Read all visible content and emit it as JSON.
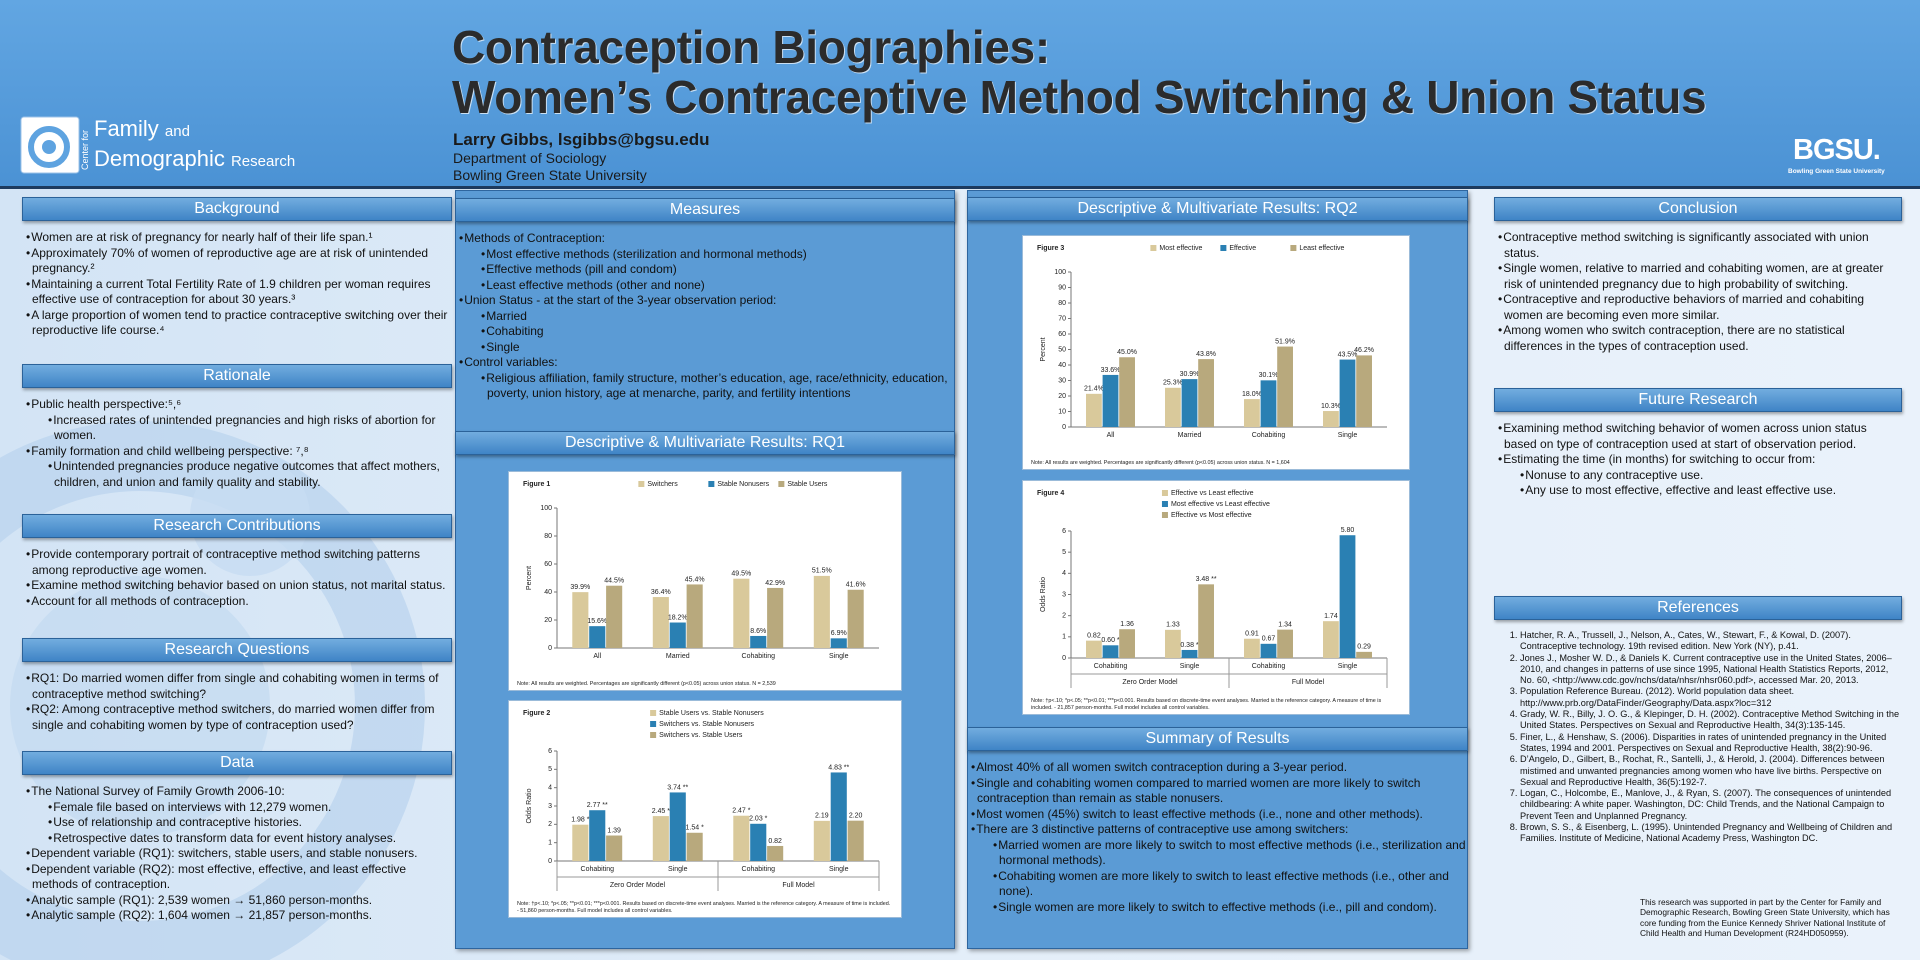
{
  "header": {
    "title_line1": "Contraception Biographies:",
    "title_line2": "Women’s Contraceptive Method Switching & Union Status",
    "author": "Larry Gibbs, lsgibbs@bgsu.edu",
    "department": "Department of Sociology",
    "university": "Bowling Green State University"
  },
  "logo": {
    "center_for": "Center for",
    "family": "Family",
    "and": "and",
    "demographic": "Demographic",
    "research": "Research"
  },
  "bgsu_logo": {
    "mark": "BGSU.",
    "name": "Bowling Green State University"
  },
  "sections": [
    {
      "heading": "Background",
      "bullets": [
        {
          "text": "Women are at risk of pregnancy for nearly half of their life span.¹"
        },
        {
          "text": "Approximately 70% of women of reproductive age are at risk of unintended pregnancy.²"
        },
        {
          "text": "Maintaining a current Total Fertility Rate of 1.9 children per woman requires effective use of contraception for about 30 years.³"
        },
        {
          "text": "A large proportion of women tend to practice contraceptive switching over their reproductive life course.⁴"
        }
      ]
    },
    {
      "heading": "Rationale",
      "bullets": [
        {
          "text": "Public health perspective:⁵,⁶",
          "sub": [
            "Increased rates of unintended pregnancies and high risks of abortion for women."
          ]
        },
        {
          "text": "Family formation and child wellbeing perspective: ⁷,⁸",
          "sub": [
            "Unintended pregnancies produce negative outcomes that affect mothers, children, and union and family quality and stability."
          ]
        }
      ]
    },
    {
      "heading": "Research Contributions",
      "bullets": [
        {
          "text": "Provide contemporary portrait of contraceptive method switching patterns among reproductive age women."
        },
        {
          "text": "Examine method switching behavior based on union status, not marital status."
        },
        {
          "text": "Account for all methods of contraception."
        }
      ]
    },
    {
      "heading": "Research Questions",
      "bullets": [
        {
          "text": "RQ1:  Do married women differ from single and cohabiting women in terms of contraceptive method switching?"
        },
        {
          "text": "RQ2:  Among contraceptive method switchers, do married women differ from single and cohabiting women by type of contraception used?"
        }
      ]
    },
    {
      "heading": "Data",
      "bullets": [
        {
          "text": "The National Survey of Family Growth 2006-10:",
          "sub": [
            "Female file based on interviews with 12,279 women.",
            "Use of relationship and contraceptive histories.",
            "Retrospective dates to transform data for event history analyses."
          ]
        },
        {
          "text": "Dependent variable (RQ1): switchers, stable users, and stable nonusers."
        },
        {
          "text": "Dependent variable (RQ2): most effective, effective, and least effective methods of contraception."
        },
        {
          "text": "Analytic sample (RQ1): 2,539 women → 51,860 person-months."
        },
        {
          "text": "Analytic sample (RQ2): 1,604 women → 21,857 person-months."
        }
      ]
    },
    {
      "heading": "Measures",
      "bullets": [
        {
          "text": "Methods of Contraception:",
          "sub": [
            "Most effective methods (sterilization and hormonal methods)",
            "Effective methods (pill and condom)",
            "Least effective methods (other and none)"
          ]
        },
        {
          "text": "Union Status - at the start of the 3-year observation period:",
          "sub": [
            "Married",
            "Cohabiting",
            "Single"
          ]
        },
        {
          "text": "Control variables:",
          "sub": [
            "Religious affiliation, family structure, mother’s education, age, race/ethnicity, education, poverty, union history, age at menarche, parity, and fertility intentions"
          ]
        }
      ]
    },
    {
      "heading": "Descriptive & Multivariate Results: RQ1"
    },
    {
      "heading": "Descriptive & Multivariate Results: RQ2"
    },
    {
      "heading": "Summary of Results",
      "bullets": [
        {
          "text": "Almost 40% of all women switch contraception during a 3-year period."
        },
        {
          "text": "Single and cohabiting women compared to married women are more likely to switch contraception than remain as stable nonusers."
        },
        {
          "text": "Most women (45%) switch to least effective methods (i.e., none and other methods)."
        },
        {
          "text": "There are 3 distinctive patterns of contraceptive use among switchers:",
          "sub": [
            "Married women are more likely to switch to most effective methods (i.e., sterilization and hormonal methods).",
            "Cohabiting women are more likely to switch to least effective methods (i.e., other and none).",
            "Single women are more likely to switch to effective methods (i.e., pill and condom)."
          ]
        }
      ]
    },
    {
      "heading": "Conclusion",
      "bullets": [
        {
          "text": "Contraceptive method switching is significantly associated with union status."
        },
        {
          "text": "Single women, relative to married and cohabiting women, are at greater risk of unintended pregnancy due to high probability of switching."
        },
        {
          "text": "Contraceptive and reproductive behaviors of married and cohabiting women are becoming even more similar."
        },
        {
          "text": "Among women who switch contraception, there are no statistical differences in the types of contraception used."
        }
      ]
    },
    {
      "heading": "Future Research",
      "bullets": [
        {
          "text": "Examining method switching behavior of women across union status based on type of contraception used at start of observation period."
        },
        {
          "text": "Estimating the time (in months) for switching to occur from:",
          "sub": [
            "Nonuse to any contraceptive use.",
            "Any use to most effective, effective and least effective use."
          ]
        }
      ]
    },
    {
      "heading": "References",
      "items": [
        "Hatcher, R. A., Trussell, J., Nelson, A., Cates, W., Stewart, F., & Kowal, D. (2007). Contraceptive technology. 19th revised edition. New York (NY), p.41.",
        "Jones J., Mosher W. D., & Daniels K. Current contraceptive use in the United States, 2006–2010, and changes in patterns of use since 1995, National Health Statistics Reports, 2012, No. 60, <http://www.cdc.gov/nchs/data/nhsr/nhsr060.pdf>, accessed Mar. 20, 2013.",
        "Population Reference Bureau. (2012). World population data sheet. http://www.prb.org/DataFinder/Geography/Data.aspx?loc=312",
        "Grady, W. R., Billy, J. O. G., & Klepinger, D. H. (2002). Contraceptive Method Switching in the United States. Perspectives on Sexual and Reproductive Health, 34(3):135-145.",
        "Finer, L., & Henshaw, S. (2006). Disparities in rates of unintended pregnancy in the United States, 1994 and 2001. Perspectives on Sexual and Reproductive Health, 38(2):90-96.",
        "D’Angelo, D., Gilbert, B., Rochat, R., Santelli, J., & Herold, J. (2004). Differences between mistimed and unwanted pregnancies among women who have live births. Perspective on Sexual and Reproductive Health, 36(5):192-7.",
        "Logan, C., Holcombe, E., Manlove, J., & Ryan, S. (2007). The consequences of unintended childbearing: A white paper. Washington, DC: Child Trends, and the National Campaign to Prevent Teen and Unplanned Pregnancy.",
        "Brown, S. S., & Eisenberg, L. (1995). Unintended Pregnancy and Wellbeing of Children and Families. Institute of Medicine, National Academy Press, Washington DC."
      ]
    }
  ],
  "funding": "This research was supported in part by the Center for Family and Demographic Research, Bowling Green State University, which has core funding from the Eunice Kennedy Shriver National Institute of Child Health and Human Development (R24HD050959).",
  "figures": [
    {
      "type": "bar",
      "title": "Figure 1",
      "y_label": "Percent",
      "categories": [
        "All",
        "Married",
        "Cohabiting",
        "Single"
      ],
      "series": [
        {
          "name": "Switchers",
          "color": "#d9c99b",
          "values": [
            39.9,
            36.4,
            49.5,
            51.5
          ],
          "value_labels": [
            "39.9%",
            "36.4%",
            "49.5%",
            "51.5%"
          ]
        },
        {
          "name": "Stable Nonusers",
          "color": "#2a80b3",
          "values": [
            15.6,
            18.2,
            8.6,
            6.9
          ],
          "value_labels": [
            "15.6%",
            "18.2%",
            "8.6%",
            "6.9%"
          ]
        },
        {
          "name": "Stable Users",
          "color": "#b8a97d",
          "values": [
            44.5,
            45.4,
            42.9,
            41.6
          ],
          "value_labels": [
            "44.5%",
            "45.4%",
            "42.9%",
            "41.6%"
          ]
        }
      ],
      "ylim": [
        0,
        100
      ],
      "yticks": [
        0,
        20,
        40,
        60,
        80,
        100
      ],
      "note": "Note: All results are weighted. Percentages are significantly different (p<0.05) across union status. N = 2,539"
    },
    {
      "type": "bar",
      "title": "Figure 2",
      "y_label": "Odds Ratio",
      "categories": [
        "Cohabiting",
        "Single",
        "Cohabiting",
        "Single"
      ],
      "groups": [
        "Zero Order Model",
        "Full Model"
      ],
      "series": [
        {
          "name": "Stable Users vs. Stable Nonusers",
          "color": "#d9c99b",
          "values": [
            1.98,
            2.45,
            2.47,
            2.19
          ],
          "value_labels": [
            "1.98 *",
            "2.45 *",
            "2.47 *",
            "2.19"
          ]
        },
        {
          "name": "Switchers vs. Stable Nonusers",
          "color": "#2a80b3",
          "values": [
            2.77,
            3.74,
            2.03,
            4.83
          ],
          "value_labels": [
            "2.77 **",
            "3.74 **",
            "2.03 *",
            "4.83 **"
          ]
        },
        {
          "name": "Switchers vs. Stable Users",
          "color": "#b8a97d",
          "values": [
            1.39,
            1.54,
            0.82,
            2.2
          ],
          "value_labels": [
            "1.39",
            "1.54 *",
            "0.82",
            "2.20"
          ]
        }
      ],
      "ylim": [
        0,
        6
      ],
      "yticks": [
        0,
        1,
        2,
        3,
        4,
        5,
        6
      ],
      "note": "Note: †p<.10; *p<.05; **p<0.01; ***p<0.001. Results based on discrete-time event analyses. Married is the reference category. A measure of time is included. - 51,860 person-months. Full model includes all control variables."
    },
    {
      "type": "bar",
      "title": "Figure 3",
      "y_label": "Percent",
      "categories": [
        "All",
        "Married",
        "Cohabiting",
        "Single"
      ],
      "series": [
        {
          "name": "Most effective",
          "color": "#d9c99b",
          "values": [
            21.4,
            25.3,
            18.0,
            10.3
          ],
          "value_labels": [
            "21.4%",
            "25.3%",
            "18.0%",
            "10.3%"
          ]
        },
        {
          "name": "Effective",
          "color": "#2a80b3",
          "values": [
            33.6,
            30.9,
            30.1,
            43.5
          ],
          "value_labels": [
            "33.6%",
            "30.9%",
            "30.1%",
            "43.5%"
          ]
        },
        {
          "name": "Least effective",
          "color": "#b8a97d",
          "values": [
            45.0,
            43.8,
            51.9,
            46.2
          ],
          "value_labels": [
            "45.0%",
            "43.8%",
            "51.9%",
            "46.2%"
          ]
        }
      ],
      "ylim": [
        0,
        100
      ],
      "yticks": [
        0,
        10,
        20,
        30,
        40,
        50,
        60,
        70,
        80,
        90,
        100
      ],
      "note": "Note: All results are weighted. Percentages are significantly different (p<0.05) across union status. N = 1,604"
    },
    {
      "type": "bar",
      "title": "Figure 4",
      "y_label": "Odds Ratio",
      "categories": [
        "Cohabiting",
        "Single",
        "Cohabiting",
        "Single"
      ],
      "groups": [
        "Zero Order Model",
        "Full Model"
      ],
      "series": [
        {
          "name": "Effective vs Least effective",
          "color": "#d9c99b",
          "values": [
            0.82,
            1.33,
            0.91,
            1.74
          ],
          "value_labels": [
            "0.82",
            "1.33",
            "0.91",
            "1.74"
          ]
        },
        {
          "name": "Most effective vs Least effective",
          "color": "#2a80b3",
          "values": [
            0.6,
            0.38,
            0.67,
            5.8
          ],
          "value_labels": [
            "0.60 *",
            "0.38 *",
            "0.67",
            "5.80"
          ]
        },
        {
          "name": "Effective vs Most effective",
          "color": "#b8a97d",
          "values": [
            1.36,
            3.48,
            1.34,
            0.29
          ],
          "value_labels": [
            "1.36",
            "3.48 **",
            "1.34",
            "0.29"
          ]
        }
      ],
      "ylim": [
        0,
        6
      ],
      "yticks": [
        0,
        1,
        2,
        3,
        4,
        5,
        6
      ],
      "note": "Note: †p<.10; *p<.05; **p<0.01; ***p<0.001. Results based on discrete-time event analyses. Married is the reference category. A measure of time is included. - 21,857 person-months. Full model includes all control variables."
    }
  ]
}
